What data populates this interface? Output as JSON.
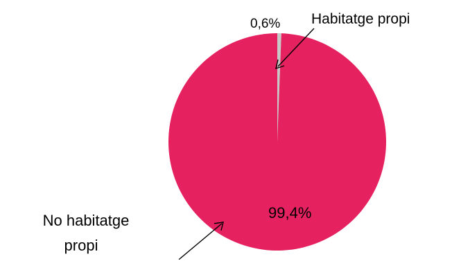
{
  "chart_data": {
    "type": "pie",
    "slices": [
      {
        "label": "Habitatge propi",
        "value": 0.6,
        "value_label": "0,6%",
        "color": "#c8c8c8"
      },
      {
        "label": "No habitatge propi",
        "value": 99.4,
        "value_label": "99,4%",
        "color": "#e5215f"
      }
    ],
    "legend": "none"
  }
}
